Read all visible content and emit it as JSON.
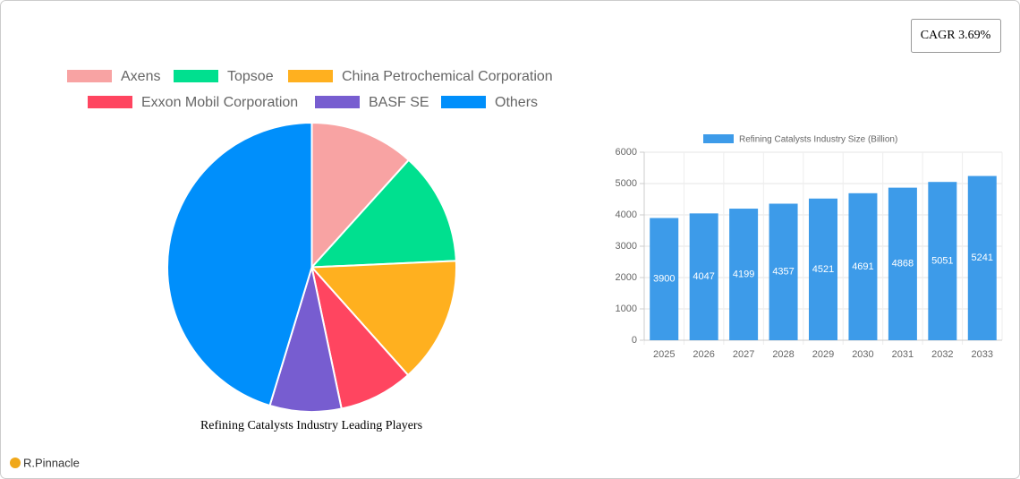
{
  "cagr": "CAGR 3.69%",
  "brand": "R.Pinnacle",
  "chart_data": [
    {
      "type": "pie",
      "title": "Refining Catalysts Industry Leading Players",
      "categories": [
        "Axens",
        "Topsoe",
        "China Petrochemical Corporation",
        "Exxon Mobil Corporation",
        "BASF SE",
        "Others"
      ],
      "values": [
        11.7,
        12.6,
        14.1,
        8.3,
        8.0,
        45.3
      ],
      "colors": [
        "#f8a3a3",
        "#00e08f",
        "#ffb01f",
        "#ff4560",
        "#775dd0",
        "#008ffb"
      ]
    },
    {
      "type": "bar",
      "categories": [
        "2025",
        "2026",
        "2027",
        "2028",
        "2029",
        "2030",
        "2031",
        "2032",
        "2033"
      ],
      "series": [
        {
          "name": "Refining Catalysts Industry Size (Billion)",
          "color": "#3d9be9",
          "values": [
            3900,
            4047,
            4199,
            4357,
            4521,
            4691,
            4868,
            5051,
            5241
          ]
        }
      ],
      "ylim": [
        0,
        6000
      ],
      "yticks": [
        0,
        1000,
        2000,
        3000,
        4000,
        5000,
        6000
      ],
      "grid": true
    }
  ]
}
